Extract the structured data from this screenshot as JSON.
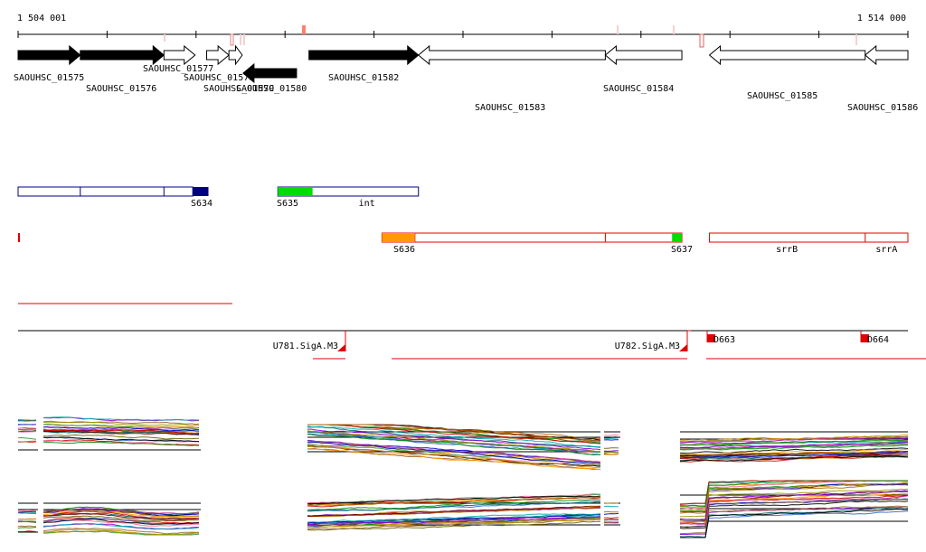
{
  "coords": {
    "start": "1 504 001",
    "end": "1 514 000",
    "start_bp": 1504001,
    "end_bp": 1514000
  },
  "genes": [
    {
      "label": "SAOUHSC_01575",
      "start": 1504001,
      "end": 1504700,
      "strand": "+",
      "fill": "black"
    },
    {
      "label": "SAOUHSC_01576",
      "start": 1504700,
      "end": 1505640,
      "strand": "+",
      "fill": "black"
    },
    {
      "label": "SAOUHSC_01577",
      "start": 1505640,
      "end": 1505990,
      "strand": "+",
      "fill": "white"
    },
    {
      "label": "SAOUHSC_01578",
      "start": 1506120,
      "end": 1506370,
      "strand": "+",
      "fill": "white"
    },
    {
      "label": "SAOUHSC_01579",
      "start": 1506370,
      "end": 1506520,
      "strand": "+",
      "fill": "white"
    },
    {
      "label": "SAOUHSC_01580",
      "start": 1506530,
      "end": 1507130,
      "strand": "-",
      "fill": "black"
    },
    {
      "label": "SAOUHSC_01582",
      "start": 1507270,
      "end": 1508500,
      "strand": "+",
      "fill": "black"
    },
    {
      "label": "SAOUHSC_01583",
      "start": 1508500,
      "end": 1510600,
      "strand": "-",
      "fill": "white"
    },
    {
      "label": "SAOUHSC_01584",
      "start": 1510600,
      "end": 1511460,
      "strand": "-",
      "fill": "white"
    },
    {
      "label": "SAOUHSC_01585",
      "start": 1511770,
      "end": 1513520,
      "strand": "-",
      "fill": "white"
    },
    {
      "label": "SAOUHSC_01586",
      "start": 1513520,
      "end": 1514000,
      "strand": "-",
      "fill": "white"
    }
  ],
  "operons_blue": [
    {
      "label": "S634",
      "start": 1504001,
      "end": 1505965
    },
    {
      "label": "S635",
      "start": 1506920,
      "end": 1508500
    }
  ],
  "operon_segments_blue": [
    1504700,
    1505640,
    1505965
  ],
  "blue_tags": [
    {
      "label": "S634",
      "start": 1505965,
      "end": 1506140,
      "color": "#000080"
    },
    {
      "label": "S635",
      "start": 1506920,
      "end": 1507310,
      "color": "#00dd00"
    }
  ],
  "blue_inner_labels": [
    {
      "label": "int",
      "pos": 1507920
    }
  ],
  "operons_red": [
    {
      "start": 1508090,
      "end": 1511460,
      "dividers": [
        1508460,
        1510600
      ]
    },
    {
      "start": 1511770,
      "end": 1514000,
      "dividers": [
        1513520
      ]
    }
  ],
  "red_tags": [
    {
      "label": "S636",
      "start": 1508090,
      "end": 1508460,
      "color": "#ff9900"
    },
    {
      "label": "S637",
      "start": 1511350,
      "end": 1511460,
      "color": "#00dd00"
    }
  ],
  "red_inner_labels": [
    {
      "label": "srrB",
      "pos": 1512640
    },
    {
      "label": "srrA",
      "pos": 1513760
    }
  ],
  "promoters": [
    {
      "label": "U781.SigA.M3",
      "pos": 1507620
    },
    {
      "label": "U782.SigA.M3",
      "pos": 1511450
    }
  ],
  "terminators": [
    {
      "label": "D663",
      "pos": 1511780
    },
    {
      "label": "D664",
      "pos": 1513800
    }
  ],
  "colors": {
    "red": "#e00000",
    "blue": "#000080"
  }
}
